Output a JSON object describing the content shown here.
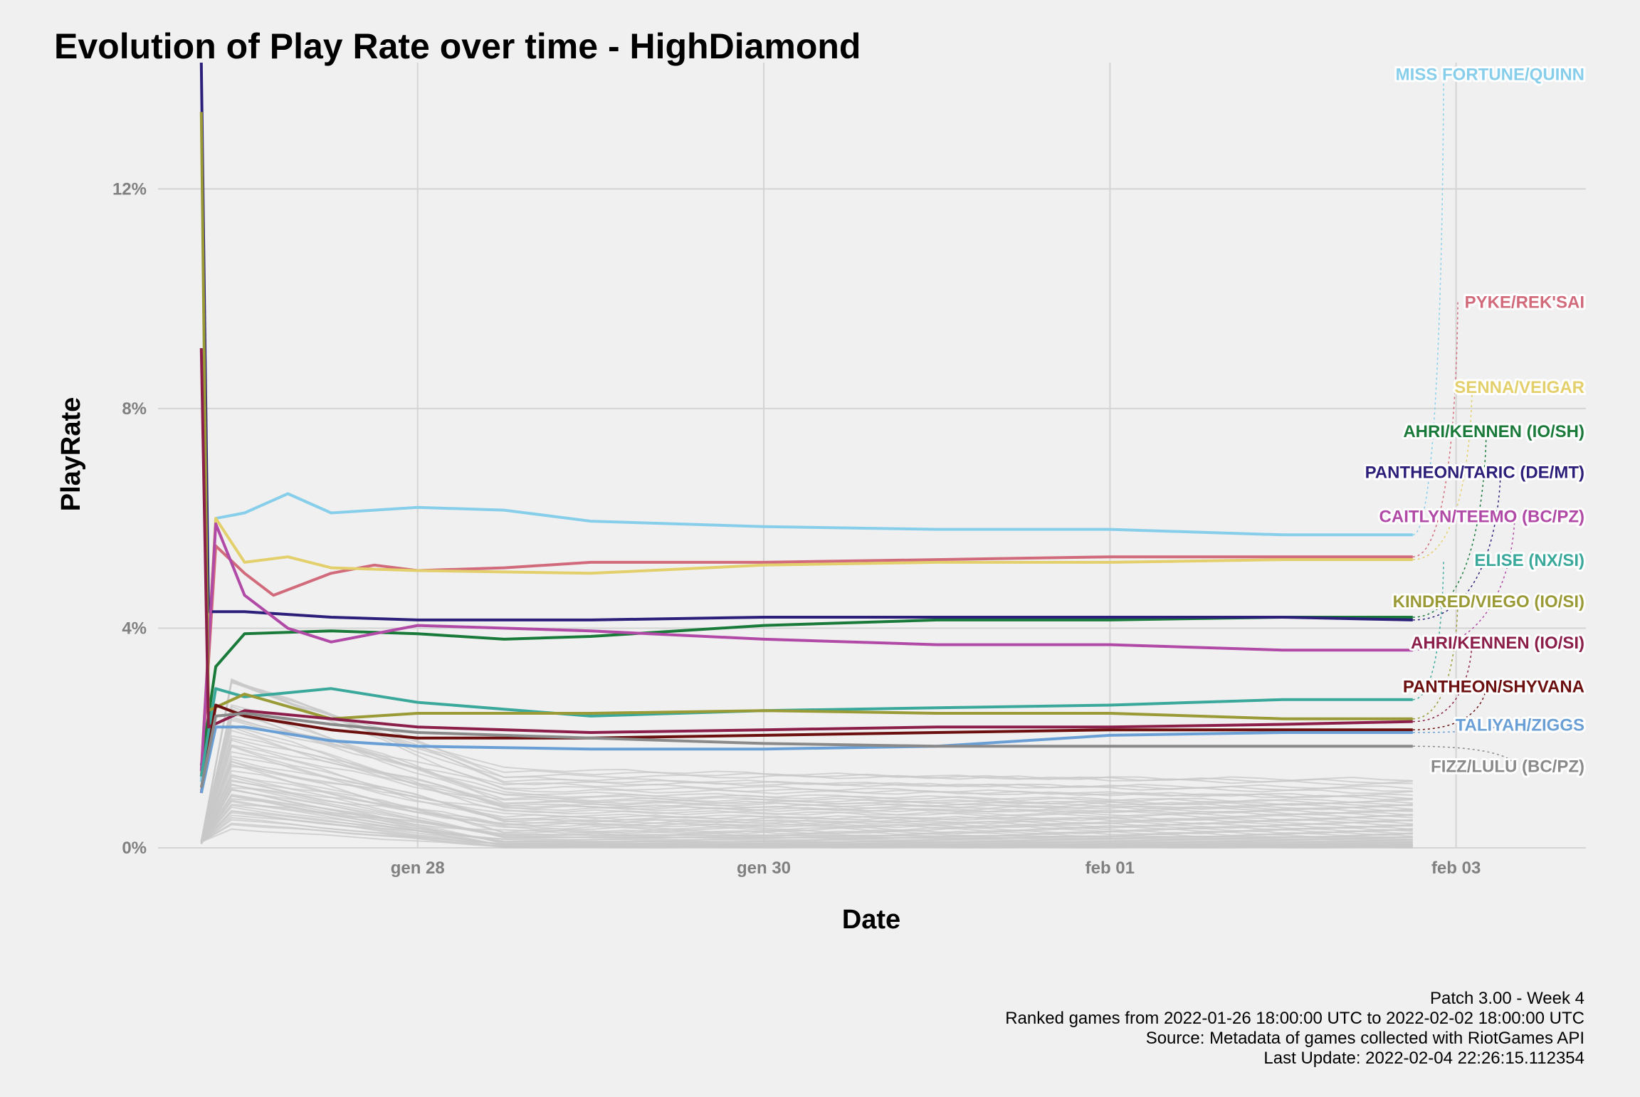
{
  "chart_data": {
    "type": "line",
    "title": "Evolution of Play Rate over time - HighDiamond",
    "xlabel": "Date",
    "ylabel": "PlayRate",
    "x_ticks": [
      {
        "date": "2022-01-28",
        "label": "gen 28"
      },
      {
        "date": "2022-01-30",
        "label": "gen 30"
      },
      {
        "date": "2022-02-01",
        "label": "feb 01"
      },
      {
        "date": "2022-02-03",
        "label": "feb 03"
      }
    ],
    "y_ticks": [
      {
        "value": 0,
        "label": "0%"
      },
      {
        "value": 4,
        "label": "4%"
      },
      {
        "value": 8,
        "label": "8%"
      },
      {
        "value": 12,
        "label": "12%"
      }
    ],
    "xlim": [
      "2022-01-26T12:00:00",
      "2022-02-03T18:00:00"
    ],
    "ylim": [
      0,
      14.3
    ],
    "grid": true,
    "legend": "none",
    "series": [
      {
        "name": "MISS FORTUNE/QUINN",
        "color": "#87ceeb",
        "label_y": 14.1,
        "points": [
          [
            "2022-01-26T18:00",
            1.2
          ],
          [
            "2022-01-26T20:00",
            6.0
          ],
          [
            "2022-01-27T00:00",
            6.1
          ],
          [
            "2022-01-27T06:00",
            6.45
          ],
          [
            "2022-01-27T12:00",
            6.1
          ],
          [
            "2022-01-28T00:00",
            6.2
          ],
          [
            "2022-01-28T12:00",
            6.15
          ],
          [
            "2022-01-29T00:00",
            5.95
          ],
          [
            "2022-01-30T00:00",
            5.85
          ],
          [
            "2022-01-31T00:00",
            5.8
          ],
          [
            "2022-02-01T00:00",
            5.8
          ],
          [
            "2022-02-01T12:00",
            5.75
          ],
          [
            "2022-02-02T00:00",
            5.7
          ],
          [
            "2022-02-02T18:00",
            5.7
          ]
        ]
      },
      {
        "name": "PYKE/REK'SAI",
        "color": "#d16b7b",
        "label_y": 9.95,
        "points": [
          [
            "2022-01-26T18:00",
            1.3
          ],
          [
            "2022-01-26T20:00",
            5.5
          ],
          [
            "2022-01-27T00:00",
            5.0
          ],
          [
            "2022-01-27T04:00",
            4.6
          ],
          [
            "2022-01-27T12:00",
            5.0
          ],
          [
            "2022-01-27T18:00",
            5.15
          ],
          [
            "2022-01-28T00:00",
            5.05
          ],
          [
            "2022-01-28T12:00",
            5.1
          ],
          [
            "2022-01-29T00:00",
            5.2
          ],
          [
            "2022-01-30T00:00",
            5.2
          ],
          [
            "2022-01-31T00:00",
            5.25
          ],
          [
            "2022-02-01T00:00",
            5.3
          ],
          [
            "2022-02-02T00:00",
            5.3
          ],
          [
            "2022-02-02T18:00",
            5.3
          ]
        ]
      },
      {
        "name": "SENNA/VEIGAR",
        "color": "#e3cf6b",
        "label_y": 8.4,
        "points": [
          [
            "2022-01-26T18:00",
            1.4
          ],
          [
            "2022-01-26T20:00",
            6.0
          ],
          [
            "2022-01-27T00:00",
            5.2
          ],
          [
            "2022-01-27T06:00",
            5.3
          ],
          [
            "2022-01-27T12:00",
            5.1
          ],
          [
            "2022-01-28T00:00",
            5.05
          ],
          [
            "2022-01-29T00:00",
            5.0
          ],
          [
            "2022-01-30T00:00",
            5.15
          ],
          [
            "2022-01-31T00:00",
            5.2
          ],
          [
            "2022-02-01T00:00",
            5.2
          ],
          [
            "2022-02-02T00:00",
            5.25
          ],
          [
            "2022-02-02T18:00",
            5.25
          ]
        ]
      },
      {
        "name": "AHRI/KENNEN (IO/SH)",
        "color": "#1a7a3a",
        "label_y": 7.6,
        "points": [
          [
            "2022-01-26T18:00",
            1.5
          ],
          [
            "2022-01-26T20:00",
            3.3
          ],
          [
            "2022-01-27T00:00",
            3.9
          ],
          [
            "2022-01-27T12:00",
            3.95
          ],
          [
            "2022-01-28T00:00",
            3.9
          ],
          [
            "2022-01-28T12:00",
            3.8
          ],
          [
            "2022-01-29T00:00",
            3.85
          ],
          [
            "2022-01-30T00:00",
            4.05
          ],
          [
            "2022-01-31T00:00",
            4.15
          ],
          [
            "2022-02-01T00:00",
            4.15
          ],
          [
            "2022-02-02T00:00",
            4.2
          ],
          [
            "2022-02-02T18:00",
            4.2
          ]
        ]
      },
      {
        "name": "PANTHEON/TARIC (DE/MT)",
        "color": "#2b1f7a",
        "label_y": 6.85,
        "points": [
          [
            "2022-01-26T18:00",
            14.3
          ],
          [
            "2022-01-26T19:00",
            4.3
          ],
          [
            "2022-01-27T00:00",
            4.3
          ],
          [
            "2022-01-27T12:00",
            4.2
          ],
          [
            "2022-01-28T00:00",
            4.15
          ],
          [
            "2022-01-29T00:00",
            4.15
          ],
          [
            "2022-01-30T00:00",
            4.2
          ],
          [
            "2022-01-31T00:00",
            4.2
          ],
          [
            "2022-02-01T00:00",
            4.2
          ],
          [
            "2022-02-02T00:00",
            4.2
          ],
          [
            "2022-02-02T18:00",
            4.15
          ]
        ]
      },
      {
        "name": "CAITLYN/TEEMO (BC/PZ)",
        "color": "#b04aa6",
        "label_y": 6.05,
        "points": [
          [
            "2022-01-26T18:00",
            1.4
          ],
          [
            "2022-01-26T20:00",
            5.9
          ],
          [
            "2022-01-27T00:00",
            4.6
          ],
          [
            "2022-01-27T06:00",
            4.0
          ],
          [
            "2022-01-27T12:00",
            3.75
          ],
          [
            "2022-01-28T00:00",
            4.05
          ],
          [
            "2022-01-29T00:00",
            3.95
          ],
          [
            "2022-01-30T00:00",
            3.8
          ],
          [
            "2022-01-31T00:00",
            3.7
          ],
          [
            "2022-02-01T00:00",
            3.7
          ],
          [
            "2022-02-02T00:00",
            3.6
          ],
          [
            "2022-02-02T18:00",
            3.6
          ]
        ]
      },
      {
        "name": "ELISE (NX/SI)",
        "color": "#3aa89a",
        "label_y": 5.25,
        "points": [
          [
            "2022-01-26T18:00",
            1.3
          ],
          [
            "2022-01-26T20:00",
            2.9
          ],
          [
            "2022-01-27T00:00",
            2.75
          ],
          [
            "2022-01-27T12:00",
            2.9
          ],
          [
            "2022-01-28T00:00",
            2.65
          ],
          [
            "2022-01-29T00:00",
            2.4
          ],
          [
            "2022-01-30T00:00",
            2.5
          ],
          [
            "2022-01-31T00:00",
            2.55
          ],
          [
            "2022-02-01T00:00",
            2.6
          ],
          [
            "2022-02-02T00:00",
            2.7
          ],
          [
            "2022-02-02T18:00",
            2.7
          ]
        ]
      },
      {
        "name": "KINDRED/VIEGO (IO/SI)",
        "color": "#9a9a36",
        "label_y": 4.5,
        "points": [
          [
            "2022-01-26T18:00",
            13.4
          ],
          [
            "2022-01-26T19:00",
            2.5
          ],
          [
            "2022-01-27T00:00",
            2.8
          ],
          [
            "2022-01-27T12:00",
            2.35
          ],
          [
            "2022-01-28T00:00",
            2.45
          ],
          [
            "2022-01-29T00:00",
            2.45
          ],
          [
            "2022-01-30T00:00",
            2.5
          ],
          [
            "2022-01-31T00:00",
            2.45
          ],
          [
            "2022-02-01T00:00",
            2.45
          ],
          [
            "2022-02-02T00:00",
            2.35
          ],
          [
            "2022-02-02T18:00",
            2.35
          ]
        ]
      },
      {
        "name": "AHRI/KENNEN (IO/SI)",
        "color": "#8b1f4a",
        "label_y": 3.75,
        "points": [
          [
            "2022-01-26T18:00",
            9.1
          ],
          [
            "2022-01-26T19:00",
            2.2
          ],
          [
            "2022-01-27T00:00",
            2.5
          ],
          [
            "2022-01-27T12:00",
            2.35
          ],
          [
            "2022-01-28T00:00",
            2.2
          ],
          [
            "2022-01-29T00:00",
            2.1
          ],
          [
            "2022-01-30T00:00",
            2.15
          ],
          [
            "2022-01-31T00:00",
            2.2
          ],
          [
            "2022-02-01T00:00",
            2.2
          ],
          [
            "2022-02-02T00:00",
            2.25
          ],
          [
            "2022-02-02T18:00",
            2.3
          ]
        ]
      },
      {
        "name": "PANTHEON/SHYVANA",
        "color": "#6b0f0f",
        "label_y": 2.95,
        "points": [
          [
            "2022-01-26T18:00",
            1.0
          ],
          [
            "2022-01-26T20:00",
            2.6
          ],
          [
            "2022-01-27T00:00",
            2.4
          ],
          [
            "2022-01-27T12:00",
            2.15
          ],
          [
            "2022-01-28T00:00",
            2.0
          ],
          [
            "2022-01-29T00:00",
            2.0
          ],
          [
            "2022-01-30T00:00",
            2.05
          ],
          [
            "2022-01-31T00:00",
            2.1
          ],
          [
            "2022-02-01T00:00",
            2.15
          ],
          [
            "2022-02-02T00:00",
            2.15
          ],
          [
            "2022-02-02T18:00",
            2.15
          ]
        ]
      },
      {
        "name": "TALIYAH/ZIGGS",
        "color": "#6a9fd6",
        "label_y": 2.25,
        "points": [
          [
            "2022-01-26T18:00",
            1.0
          ],
          [
            "2022-01-26T20:00",
            2.2
          ],
          [
            "2022-01-27T00:00",
            2.2
          ],
          [
            "2022-01-27T12:00",
            1.95
          ],
          [
            "2022-01-28T00:00",
            1.85
          ],
          [
            "2022-01-29T00:00",
            1.8
          ],
          [
            "2022-01-30T00:00",
            1.8
          ],
          [
            "2022-01-31T00:00",
            1.85
          ],
          [
            "2022-02-01T00:00",
            2.05
          ],
          [
            "2022-02-02T00:00",
            2.1
          ],
          [
            "2022-02-02T18:00",
            2.1
          ]
        ]
      },
      {
        "name": "FIZZ/LULU (BC/PZ)",
        "color": "#8a8a8a",
        "label_y": 1.5,
        "points": [
          [
            "2022-01-26T18:00",
            1.1
          ],
          [
            "2022-01-26T20:00",
            2.4
          ],
          [
            "2022-01-27T00:00",
            2.45
          ],
          [
            "2022-01-27T12:00",
            2.25
          ],
          [
            "2022-01-28T00:00",
            2.1
          ],
          [
            "2022-01-29T00:00",
            2.0
          ],
          [
            "2022-01-30T00:00",
            1.9
          ],
          [
            "2022-01-31T00:00",
            1.85
          ],
          [
            "2022-02-01T00:00",
            1.85
          ],
          [
            "2022-02-02T00:00",
            1.85
          ],
          [
            "2022-02-02T18:00",
            1.85
          ]
        ]
      }
    ],
    "background_series": {
      "color": "#c8c8c8",
      "count": 60,
      "end": "2022-02-02T18:00:00",
      "final_values": [
        1.25,
        1.2,
        1.15,
        1.1,
        1.05,
        1.0,
        0.95,
        0.92,
        0.9,
        0.85,
        0.82,
        0.8,
        0.78,
        0.75,
        0.72,
        0.7,
        0.68,
        0.65,
        0.62,
        0.6,
        0.58,
        0.55,
        0.52,
        0.5,
        0.48,
        0.45,
        0.43,
        0.4,
        0.38,
        0.36,
        0.34,
        0.32,
        0.3,
        0.28,
        0.26,
        0.24,
        0.22,
        0.2,
        0.19,
        0.18,
        0.16,
        0.15,
        0.14,
        0.12,
        0.11,
        0.1,
        0.09,
        0.08,
        0.07,
        0.06,
        0.05,
        0.05,
        0.04,
        0.04,
        0.03,
        0.03,
        0.02,
        0.02,
        0.01,
        0.01
      ]
    },
    "caption": [
      "Patch 3.00 - Week 4",
      "Ranked games from 2022-01-26 18:00:00 UTC to 2022-02-02 18:00:00 UTC",
      "Source: Metadata of games collected with RiotGames API",
      "Last Update: 2022-02-04 22:26:15.112354"
    ]
  }
}
